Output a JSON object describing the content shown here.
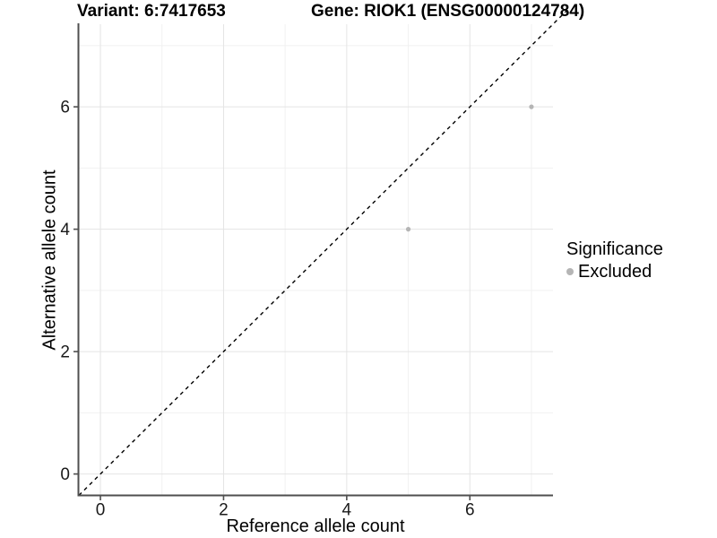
{
  "chart_data": {
    "type": "scatter",
    "title_left": "Variant: 6:7417653",
    "title_right": "Gene: RIOK1 (ENSG00000124784)",
    "xlabel": "Reference allele count",
    "ylabel": "Alternative allele count",
    "xlim": [
      -0.35,
      7.35
    ],
    "ylim": [
      -0.35,
      7.35
    ],
    "x_ticks": [
      0,
      2,
      4,
      6
    ],
    "y_ticks": [
      0,
      2,
      4,
      6
    ],
    "x_minor": [
      1,
      3,
      5,
      7
    ],
    "y_minor": [
      1,
      3,
      5,
      7
    ],
    "grid": true,
    "identity_line": {
      "slope": 1,
      "intercept": 0,
      "linetype": "dashed",
      "color": "#000000"
    },
    "series": [
      {
        "name": "Excluded",
        "color": "#b5b5b5",
        "points": [
          {
            "x": 5,
            "y": 4
          },
          {
            "x": 7,
            "y": 6
          }
        ]
      }
    ],
    "legend": {
      "position": "right",
      "title": "Significance",
      "items": [
        {
          "label": "Excluded",
          "color": "#b5b5b5",
          "marker": "dot"
        }
      ]
    }
  },
  "colors": {
    "background": "#ffffff",
    "grid_major": "#e4e4e4",
    "grid_minor": "#f1f1f1",
    "axis_line": "#4f4f4f",
    "tick_mark": "#4f4f4f",
    "tick_label": "#1a1a1a"
  }
}
